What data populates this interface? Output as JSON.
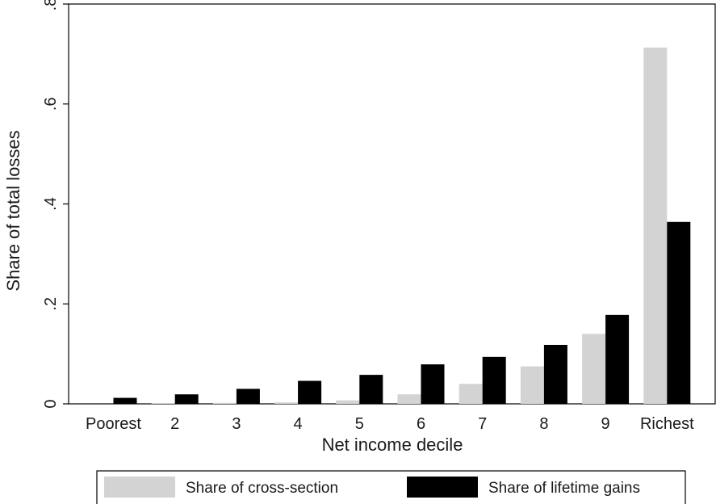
{
  "chart_data": {
    "type": "bar",
    "title": "",
    "xlabel": "Net income decile",
    "ylabel": "Share of total losses",
    "ylim": [
      0,
      0.8
    ],
    "yticks": [
      0,
      0.2,
      0.4,
      0.6,
      0.8
    ],
    "ytick_labels": [
      "0",
      ".2",
      ".4",
      ".6",
      ".8"
    ],
    "categories": [
      "Poorest",
      "2",
      "3",
      "4",
      "5",
      "6",
      "7",
      "8",
      "9",
      "Richest"
    ],
    "series": [
      {
        "name": "Share of cross-section",
        "color": "#d3d3d3",
        "values": [
          0.0,
          0.001,
          0.002,
          0.003,
          0.007,
          0.019,
          0.04,
          0.075,
          0.14,
          0.713
        ]
      },
      {
        "name": "Share of lifetime gains",
        "color": "#000000",
        "values": [
          0.012,
          0.019,
          0.03,
          0.046,
          0.058,
          0.079,
          0.094,
          0.118,
          0.178,
          0.364
        ]
      }
    ],
    "grid": false,
    "legend": "bottom"
  }
}
